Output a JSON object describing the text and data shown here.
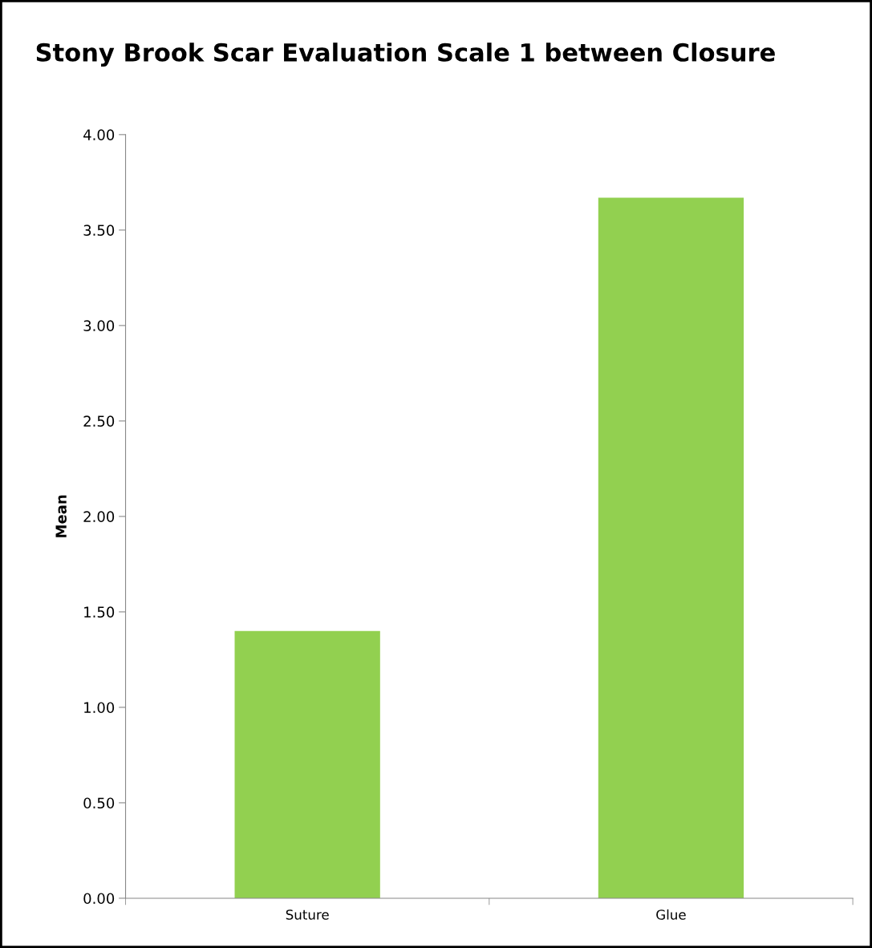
{
  "chart_data": {
    "type": "bar",
    "title": "Stony Brook Scar Evaluation Scale 1 between Closure",
    "ylabel": "Mean",
    "categories": [
      "Suture",
      "Glue"
    ],
    "values": [
      1.4,
      3.67
    ],
    "color": "#92d050",
    "ylim": [
      0,
      4
    ],
    "yticks": [
      {
        "value": 0,
        "label": "0.00"
      },
      {
        "value": 0.5,
        "label": "0.50"
      },
      {
        "value": 1,
        "label": "1.00"
      },
      {
        "value": 1.5,
        "label": "1.50"
      },
      {
        "value": 2,
        "label": "2.00"
      },
      {
        "value": 2.5,
        "label": "2.50"
      },
      {
        "value": 3,
        "label": "3.00"
      },
      {
        "value": 3.5,
        "label": "3.50"
      },
      {
        "value": 4,
        "label": "4.00"
      }
    ],
    "grid": false,
    "legend": false
  }
}
